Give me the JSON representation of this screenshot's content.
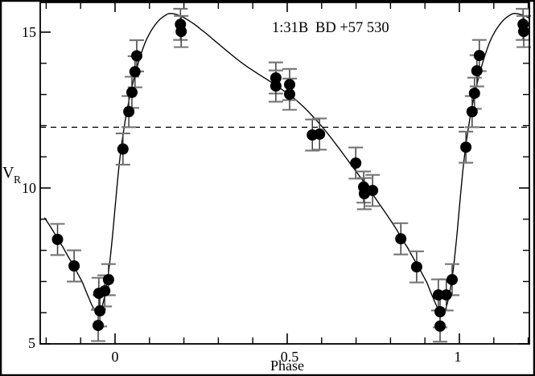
{
  "colors": {
    "ink": "#000000",
    "error_line": "#3d3d3d",
    "error_cap": "#757575",
    "background": "#ffffff"
  },
  "chart_data": {
    "type": "scatter",
    "title": {
      "id": "1:31B",
      "star": "BD +57 530"
    },
    "xlabel": "Phase",
    "ylabel": {
      "base": "V",
      "sub": "R"
    },
    "x_tick_labels": [
      "0",
      "0.5",
      "1"
    ],
    "x_major_ticks": [
      0,
      0.5,
      1
    ],
    "x_minor_ticks": [
      -0.2,
      -0.1,
      0.1,
      0.2,
      0.3,
      0.4,
      0.6,
      0.7,
      0.8,
      0.9,
      1.1,
      1.2
    ],
    "y_tick_labels": [
      "15",
      "10",
      "5"
    ],
    "y_major_ticks": [
      15,
      10,
      5
    ],
    "y_minor_ticks": [
      6,
      7,
      8,
      9,
      11,
      12,
      13,
      14
    ],
    "xlim": [
      -0.2173,
      1.2033
    ],
    "ylim": [
      5,
      15.954
    ],
    "grid": false,
    "legend": "none",
    "mean_velocity_line": 11.95,
    "error_bar_halfsize": 0.5,
    "points": [
      [
        -0.167,
        8.35
      ],
      [
        -0.119,
        7.5
      ],
      [
        -0.049,
        5.59
      ],
      [
        -0.044,
        6.06
      ],
      [
        -0.047,
        6.62
      ],
      [
        -0.03,
        6.7
      ],
      [
        -0.019,
        7.06
      ],
      [
        0.023,
        11.25
      ],
      [
        0.04,
        12.45
      ],
      [
        0.049,
        13.07
      ],
      [
        0.058,
        13.73
      ],
      [
        0.063,
        14.24
      ],
      [
        0.19,
        15.25
      ],
      [
        0.192,
        15.02
      ],
      [
        0.467,
        13.53
      ],
      [
        0.467,
        13.27
      ],
      [
        0.507,
        13.32
      ],
      [
        0.507,
        13.01
      ],
      [
        0.573,
        11.7
      ],
      [
        0.594,
        11.73
      ],
      [
        0.699,
        10.8
      ],
      [
        0.722,
        10.03
      ],
      [
        0.724,
        9.82
      ],
      [
        0.748,
        9.92
      ],
      [
        0.83,
        8.37
      ],
      [
        0.876,
        7.47
      ],
      [
        0.939,
        6.57
      ],
      [
        0.944,
        6.03
      ],
      [
        0.944,
        5.57
      ],
      [
        0.962,
        6.57
      ],
      [
        0.979,
        7.06
      ],
      [
        1.019,
        11.31
      ],
      [
        1.037,
        12.45
      ],
      [
        1.044,
        13.04
      ],
      [
        1.051,
        13.76
      ],
      [
        1.058,
        14.25
      ],
      [
        1.185,
        15.25
      ],
      [
        1.187,
        15.02
      ]
    ],
    "fit_curve_period": [
      [
        0.16,
        15.6
      ],
      [
        0.19,
        15.52
      ],
      [
        0.22,
        15.33
      ],
      [
        0.25,
        15.08
      ],
      [
        0.29,
        14.72
      ],
      [
        0.33,
        14.35
      ],
      [
        0.37,
        14.0
      ],
      [
        0.41,
        13.7
      ],
      [
        0.45,
        13.42
      ],
      [
        0.49,
        13.12
      ],
      [
        0.53,
        12.78
      ],
      [
        0.57,
        12.35
      ],
      [
        0.61,
        11.85
      ],
      [
        0.65,
        11.28
      ],
      [
        0.69,
        10.68
      ],
      [
        0.73,
        10.08
      ],
      [
        0.77,
        9.45
      ],
      [
        0.81,
        8.8
      ],
      [
        0.85,
        8.08
      ],
      [
        0.88,
        7.5
      ],
      [
        0.905,
        6.98
      ],
      [
        0.925,
        6.45
      ],
      [
        0.94,
        6.1
      ],
      [
        0.95,
        6.0
      ],
      [
        0.96,
        6.12
      ],
      [
        0.972,
        6.65
      ],
      [
        0.983,
        7.45
      ],
      [
        0.993,
        8.5
      ],
      [
        1.002,
        9.6
      ],
      [
        1.01,
        10.55
      ],
      [
        1.019,
        11.4
      ],
      [
        1.03,
        12.2
      ],
      [
        1.043,
        12.95
      ],
      [
        1.057,
        13.6
      ],
      [
        1.072,
        14.18
      ],
      [
        1.088,
        14.68
      ],
      [
        1.105,
        15.05
      ],
      [
        1.125,
        15.35
      ],
      [
        1.145,
        15.53
      ],
      [
        1.16,
        15.6
      ]
    ],
    "fit_curve_range": [
      -0.205,
      1.2033
    ]
  }
}
